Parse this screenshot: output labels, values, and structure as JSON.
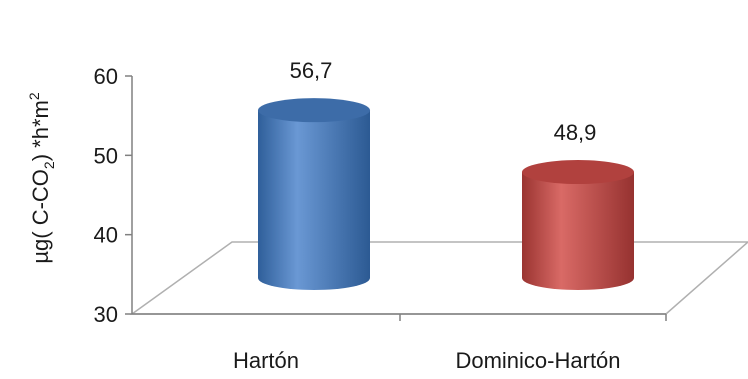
{
  "chart_data": {
    "type": "bar",
    "style": "3d-cylinder",
    "categories": [
      "Hartón",
      "Dominico-Hartón"
    ],
    "values": [
      56.7,
      48.9
    ],
    "data_labels": [
      "56,7",
      "48,9"
    ],
    "bar_colors": [
      "#4f81bd",
      "#c0504d"
    ],
    "ylim": [
      30,
      60
    ],
    "yticks": [
      30,
      40,
      50,
      60
    ],
    "ytick_labels": [
      "30",
      "40",
      "50",
      "60"
    ],
    "ylabel": {
      "prefix": "µg( C-CO",
      "sub": "2",
      "mid": ") *h*m",
      "sup": "2"
    },
    "xlabel": "",
    "title": "",
    "grid": false,
    "legend": "none"
  }
}
